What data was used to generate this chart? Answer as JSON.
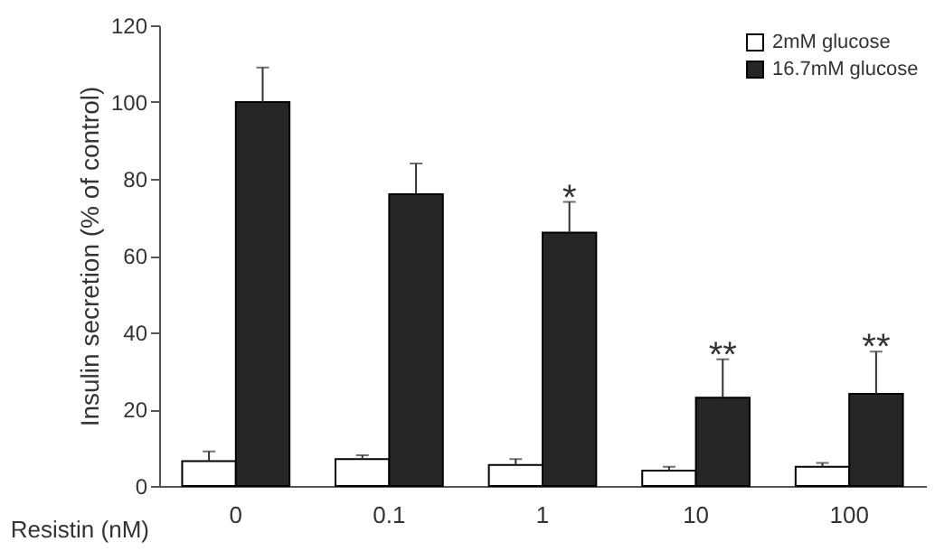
{
  "chart_data": {
    "type": "bar",
    "ylabel": "Insulin secretion (% of control)",
    "xlabel": "Resistin (nM)",
    "categories": [
      "0",
      "0.1",
      "1",
      "10",
      "100"
    ],
    "series": [
      {
        "name": "2mM glucose",
        "color": "#ffffff",
        "values": [
          6.5,
          7,
          5.5,
          4,
          5
        ],
        "errors": [
          [
            6.5,
            9
          ],
          [
            7,
            8
          ],
          [
            5.5,
            7
          ],
          [
            4,
            5
          ],
          [
            5,
            6
          ]
        ]
      },
      {
        "name": "16.7mM glucose",
        "color": "#262626",
        "values": [
          100,
          76,
          66,
          23,
          24
        ],
        "errors": [
          [
            100,
            109
          ],
          [
            76,
            84
          ],
          [
            66,
            74
          ],
          [
            23,
            33
          ],
          [
            24,
            35
          ]
        ]
      }
    ],
    "ylim": [
      0,
      120
    ],
    "yticks": [
      0,
      20,
      40,
      60,
      80,
      100,
      120
    ],
    "grid": false,
    "legend": "top right",
    "annotations": [
      {
        "text": "*",
        "x": "1",
        "y": 66
      },
      {
        "text": "**",
        "x": "10",
        "y": 23
      },
      {
        "text": "**",
        "x": "100",
        "y": 24
      }
    ]
  }
}
